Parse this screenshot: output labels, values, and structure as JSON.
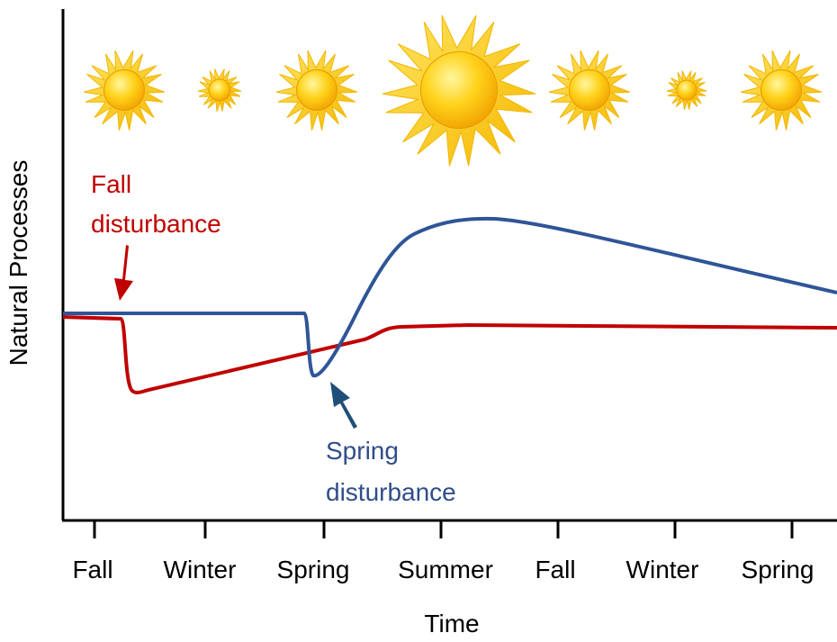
{
  "axes": {
    "y_label": "Natural Processes",
    "x_label": "Time",
    "x_categories": [
      "Fall",
      "Winter",
      "Spring",
      "Summer",
      "Fall",
      "Winter",
      "Spring"
    ]
  },
  "annotations": {
    "fall_disturbance": [
      "Fall",
      "disturbance"
    ],
    "spring_disturbance": [
      "Spring",
      "disturbance"
    ]
  }
}
